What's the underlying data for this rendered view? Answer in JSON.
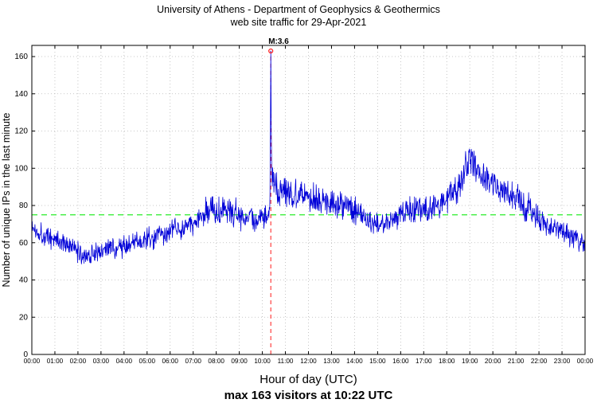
{
  "page": {
    "title_line1": "University of Athens - Department of Geophysics & Geothermics",
    "title_line2": "web site traffic for 29-Apr-2021"
  },
  "chart_data": {
    "type": "line",
    "title": "University of Athens - Department of Geophysics & Geothermics",
    "subtitle": "web site traffic for 29-Apr-2021",
    "xlabel": "Hour of day (UTC)",
    "ylabel": "Number of unique IPs in the last minute",
    "max_note": "max 163 visitors at 10:22 UTC",
    "x_ticks": [
      "00:00",
      "01:00",
      "02:00",
      "03:00",
      "04:00",
      "05:00",
      "06:00",
      "07:00",
      "08:00",
      "09:00",
      "10:00",
      "11:00",
      "12:00",
      "13:00",
      "14:00",
      "15:00",
      "16:00",
      "17:00",
      "18:00",
      "19:00",
      "20:00",
      "21:00",
      "22:00",
      "23:00",
      "00:00"
    ],
    "y_ticks": [
      0,
      20,
      40,
      60,
      80,
      100,
      120,
      140,
      160
    ],
    "ylim": [
      0,
      166
    ],
    "x_minutes_range": [
      0,
      1440
    ],
    "grid": "dotted",
    "colors": {
      "series": "#0000d8",
      "baseline": "#3dee3d",
      "event": "#ff1a1a",
      "grid": "#b8b8b8",
      "axis": "#000000"
    },
    "baseline": {
      "value": 75,
      "style": "dashed"
    },
    "event_line": {
      "minute": 622,
      "time_label": "10:22",
      "peak_value": 163,
      "style": "dashed",
      "annotation": "M:3.6"
    },
    "series_name": "unique IPs per minute",
    "noise_amplitude": 4.6,
    "seed": 1337,
    "keypoints": [
      [
        0,
        68
      ],
      [
        20,
        66
      ],
      [
        40,
        63
      ],
      [
        60,
        62
      ],
      [
        80,
        60
      ],
      [
        100,
        58
      ],
      [
        120,
        55
      ],
      [
        140,
        53
      ],
      [
        160,
        54
      ],
      [
        180,
        56
      ],
      [
        200,
        57
      ],
      [
        220,
        57
      ],
      [
        240,
        58
      ],
      [
        260,
        59
      ],
      [
        280,
        61
      ],
      [
        300,
        62
      ],
      [
        320,
        63
      ],
      [
        340,
        64
      ],
      [
        360,
        66
      ],
      [
        380,
        67
      ],
      [
        400,
        69
      ],
      [
        420,
        70
      ],
      [
        435,
        72
      ],
      [
        450,
        76
      ],
      [
        465,
        78
      ],
      [
        480,
        78
      ],
      [
        495,
        80
      ],
      [
        510,
        78
      ],
      [
        525,
        76
      ],
      [
        540,
        75
      ],
      [
        555,
        74
      ],
      [
        570,
        73
      ],
      [
        585,
        72
      ],
      [
        600,
        73
      ],
      [
        618,
        74
      ],
      [
        622,
        163
      ],
      [
        626,
        95
      ],
      [
        645,
        88
      ],
      [
        660,
        88
      ],
      [
        680,
        86
      ],
      [
        700,
        88
      ],
      [
        720,
        86
      ],
      [
        740,
        84
      ],
      [
        760,
        83
      ],
      [
        780,
        82
      ],
      [
        800,
        80
      ],
      [
        820,
        79
      ],
      [
        840,
        77
      ],
      [
        860,
        74
      ],
      [
        880,
        72
      ],
      [
        900,
        71
      ],
      [
        920,
        70
      ],
      [
        940,
        73
      ],
      [
        960,
        75
      ],
      [
        980,
        78
      ],
      [
        1000,
        79
      ],
      [
        1020,
        78
      ],
      [
        1040,
        78
      ],
      [
        1060,
        80
      ],
      [
        1080,
        83
      ],
      [
        1100,
        88
      ],
      [
        1120,
        92
      ],
      [
        1130,
        102
      ],
      [
        1140,
        106
      ],
      [
        1150,
        102
      ],
      [
        1165,
        97
      ],
      [
        1180,
        95
      ],
      [
        1200,
        92
      ],
      [
        1230,
        89
      ],
      [
        1260,
        85
      ],
      [
        1280,
        80
      ],
      [
        1300,
        77
      ],
      [
        1320,
        73
      ],
      [
        1340,
        70
      ],
      [
        1360,
        68
      ],
      [
        1380,
        66
      ],
      [
        1400,
        64
      ],
      [
        1420,
        62
      ],
      [
        1440,
        59
      ]
    ],
    "spike_overrides": [
      [
        619,
        78
      ],
      [
        620,
        86
      ],
      [
        621,
        120
      ],
      [
        622,
        163
      ],
      [
        623,
        126
      ],
      [
        624,
        104
      ],
      [
        625,
        97
      ]
    ]
  }
}
